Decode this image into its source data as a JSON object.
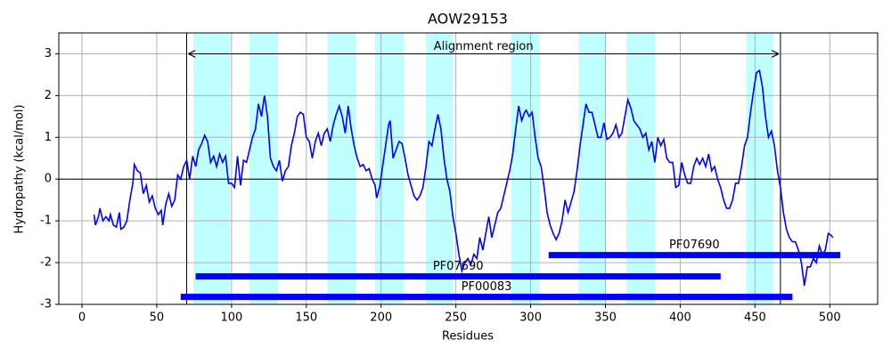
{
  "chart_data": {
    "type": "line",
    "title": "AOW29153",
    "xlabel": "Residues",
    "ylabel": "Hydropathy (kcal/mol)",
    "x": [
      8,
      9,
      11,
      12,
      14,
      16,
      18,
      19,
      21,
      23,
      25,
      26,
      28,
      30,
      32,
      34,
      35,
      37,
      39,
      41,
      43,
      45,
      47,
      49,
      51,
      53,
      54,
      56,
      58,
      60,
      62,
      64,
      66,
      68,
      70,
      72,
      74,
      76,
      78,
      80,
      82,
      84,
      86,
      88,
      90,
      92,
      94,
      96,
      98,
      100,
      102,
      104,
      106,
      108,
      110,
      112,
      114,
      116,
      118,
      120,
      122,
      124,
      126,
      128,
      130,
      132,
      134,
      136,
      138,
      140,
      142,
      144,
      146,
      148,
      150,
      152,
      154,
      156,
      158,
      160,
      162,
      164,
      166,
      168,
      170,
      172,
      174,
      176,
      178,
      180,
      182,
      184,
      186,
      188,
      190,
      192,
      194,
      196,
      197,
      199,
      201,
      203,
      205,
      206,
      208,
      210,
      212,
      214,
      216,
      218,
      220,
      222,
      224,
      226,
      228,
      230,
      232,
      234,
      236,
      238,
      240,
      242,
      244,
      246,
      248,
      250,
      252,
      254,
      256,
      258,
      260,
      262,
      264,
      266,
      268,
      270,
      272,
      274,
      276,
      278,
      280,
      282,
      284,
      286,
      288,
      290,
      292,
      294,
      296,
      297,
      299,
      301,
      303,
      305,
      307,
      309,
      311,
      313,
      315,
      317,
      319,
      321,
      323,
      325,
      327,
      329,
      331,
      333,
      335,
      337,
      339,
      341,
      343,
      345,
      347,
      349,
      351,
      353,
      355,
      357,
      359,
      361,
      363,
      365,
      367,
      369,
      371,
      373,
      375,
      377,
      379,
      381,
      383,
      385,
      387,
      389,
      391,
      393,
      395,
      397,
      399,
      401,
      403,
      405,
      407,
      409,
      411,
      413,
      415,
      417,
      419,
      421,
      423,
      425,
      427,
      429,
      431,
      433,
      435,
      437,
      439,
      441,
      443,
      445,
      447,
      449,
      451,
      453,
      455,
      457,
      459,
      461,
      463,
      465,
      467,
      469,
      471,
      473,
      475,
      477,
      479,
      481,
      483,
      485,
      487,
      489,
      491,
      493,
      495,
      497,
      499,
      501,
      502
    ],
    "values": [
      -0.85,
      -1.1,
      -0.9,
      -0.7,
      -1.0,
      -0.9,
      -1.0,
      -0.85,
      -1.1,
      -1.15,
      -0.8,
      -1.2,
      -1.15,
      -1.0,
      -0.5,
      -0.1,
      0.35,
      0.2,
      0.15,
      -0.35,
      -0.15,
      -0.55,
      -0.4,
      -0.7,
      -0.85,
      -0.75,
      -1.1,
      -0.6,
      -0.35,
      -0.65,
      -0.5,
      0.1,
      0.0,
      0.3,
      0.45,
      0.0,
      0.55,
      0.3,
      0.7,
      0.85,
      1.05,
      0.9,
      0.4,
      0.55,
      0.3,
      0.6,
      0.4,
      0.55,
      -0.1,
      -0.1,
      -0.2,
      0.55,
      -0.15,
      0.45,
      0.4,
      0.7,
      1.0,
      1.2,
      1.8,
      1.5,
      2.0,
      1.5,
      0.5,
      0.3,
      0.2,
      0.45,
      -0.05,
      0.2,
      0.3,
      0.8,
      1.1,
      1.5,
      1.6,
      1.55,
      1.0,
      0.9,
      0.5,
      0.9,
      1.1,
      0.8,
      1.1,
      1.2,
      0.9,
      1.3,
      1.55,
      1.75,
      1.5,
      1.1,
      1.75,
      1.2,
      0.8,
      0.5,
      0.3,
      0.35,
      0.2,
      0.25,
      0.0,
      -0.15,
      -0.45,
      -0.2,
      0.3,
      0.8,
      1.3,
      1.4,
      0.5,
      0.7,
      0.9,
      0.85,
      0.5,
      0.1,
      -0.15,
      -0.4,
      -0.5,
      -0.4,
      -0.2,
      0.3,
      0.9,
      0.8,
      1.2,
      1.55,
      1.2,
      0.5,
      0.0,
      -0.3,
      -0.9,
      -1.3,
      -1.8,
      -2.2,
      -2.0,
      -1.9,
      -2.05,
      -1.8,
      -1.9,
      -1.4,
      -1.7,
      -1.3,
      -0.9,
      -1.4,
      -1.1,
      -0.8,
      -0.7,
      -0.4,
      -0.1,
      0.2,
      0.6,
      1.2,
      1.75,
      1.4,
      1.6,
      1.65,
      1.5,
      1.6,
      1.0,
      0.5,
      0.3,
      -0.2,
      -0.8,
      -1.1,
      -1.3,
      -1.45,
      -1.3,
      -1.0,
      -0.5,
      -0.8,
      -0.55,
      -0.3,
      0.2,
      0.8,
      1.3,
      1.8,
      1.6,
      1.6,
      1.3,
      1.0,
      1.0,
      1.35,
      0.95,
      1.0,
      1.1,
      1.3,
      1.0,
      1.1,
      1.5,
      1.9,
      1.7,
      1.4,
      1.3,
      1.2,
      1.0,
      1.1,
      0.7,
      0.9,
      0.4,
      1.0,
      0.8,
      0.95,
      0.5,
      0.4,
      0.4,
      -0.2,
      -0.15,
      0.4,
      0.1,
      -0.1,
      -0.1,
      0.3,
      0.5,
      0.35,
      0.5,
      0.3,
      0.6,
      0.2,
      0.3,
      0.0,
      -0.2,
      -0.5,
      -0.7,
      -0.7,
      -0.5,
      -0.1,
      -0.1,
      0.3,
      0.8,
      1.0,
      1.6,
      2.1,
      2.55,
      2.6,
      2.2,
      1.5,
      1.0,
      1.15,
      0.8,
      0.2,
      -0.2,
      -0.8,
      -1.2,
      -1.4,
      -1.5,
      -1.5,
      -1.7,
      -2.0,
      -2.55,
      -2.1,
      -2.1,
      -1.9,
      -2.0,
      -1.6,
      -1.8,
      -1.7,
      -1.3,
      -1.35,
      -1.4
    ],
    "color": "#0000ff",
    "xlim": [
      -15.5,
      532
    ],
    "ylim": [
      -3,
      3.5
    ],
    "xticks": [
      0,
      50,
      100,
      150,
      200,
      250,
      300,
      350,
      400,
      450,
      500
    ],
    "yticks": [
      -3,
      -2,
      -1,
      0,
      1,
      2,
      3
    ],
    "grid": true,
    "hline": 0,
    "regions": [
      [
        74.5,
        99
      ],
      [
        112,
        131
      ],
      [
        164,
        183
      ],
      [
        196,
        215
      ],
      [
        230,
        248
      ],
      [
        287,
        306
      ],
      [
        332,
        350
      ],
      [
        364,
        383
      ],
      [
        444,
        462
      ]
    ],
    "region_color": "#bfffff",
    "alignment": {
      "label": "Alignment region",
      "start": 70,
      "end": 467,
      "y": 3
    },
    "domains": [
      {
        "name": "PF07690",
        "start": 312,
        "end": 507,
        "y": -1.82
      },
      {
        "name": "PF07690",
        "start": 76,
        "end": 427,
        "y": -2.33
      },
      {
        "name": "PF00083",
        "start": 66,
        "end": 475,
        "y": -2.82
      }
    ],
    "domain_color": "#0000ff"
  }
}
